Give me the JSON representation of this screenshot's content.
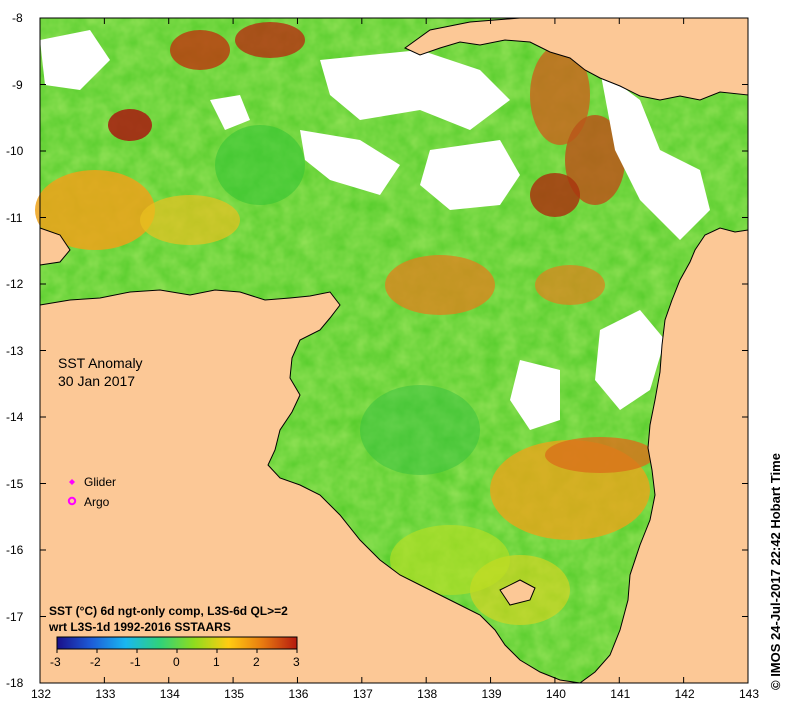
{
  "map": {
    "title": "SST Anomaly",
    "date": "30 Jan 2017",
    "legend_items": [
      {
        "label": "Glider",
        "symbol": "diamond",
        "color": "#ff00ff"
      },
      {
        "label": "Argo",
        "symbol": "circle",
        "color": "#ff00ff"
      }
    ],
    "caption_line1": "SST (°C) 6d ngt-only comp, L3S-6d QL>=2",
    "caption_line2": "wrt L3S-1d 1992-2016 SSTAARS",
    "credit": "© IMOS 24-Jul-2017 22:42 Hobart Time",
    "land_color": "#fcc896",
    "colorbar": {
      "min": -3,
      "max": 3,
      "tick_labels": [
        "-3",
        "-2",
        "-1",
        "0",
        "1",
        "2",
        "3"
      ],
      "colors": [
        "#1a0f8a",
        "#1d5cd8",
        "#19b7f0",
        "#2fd27a",
        "#8fdc1e",
        "#ffcc12",
        "#e87a10",
        "#b51a0f"
      ]
    },
    "lon_labels": [
      "132",
      "133",
      "134",
      "135",
      "136",
      "137",
      "138",
      "139",
      "140",
      "141",
      "142",
      "143"
    ],
    "lat_labels": [
      "-8",
      "-9",
      "-10",
      "-11",
      "-12",
      "-13",
      "-14",
      "-15",
      "-16",
      "-17",
      "-18"
    ]
  }
}
